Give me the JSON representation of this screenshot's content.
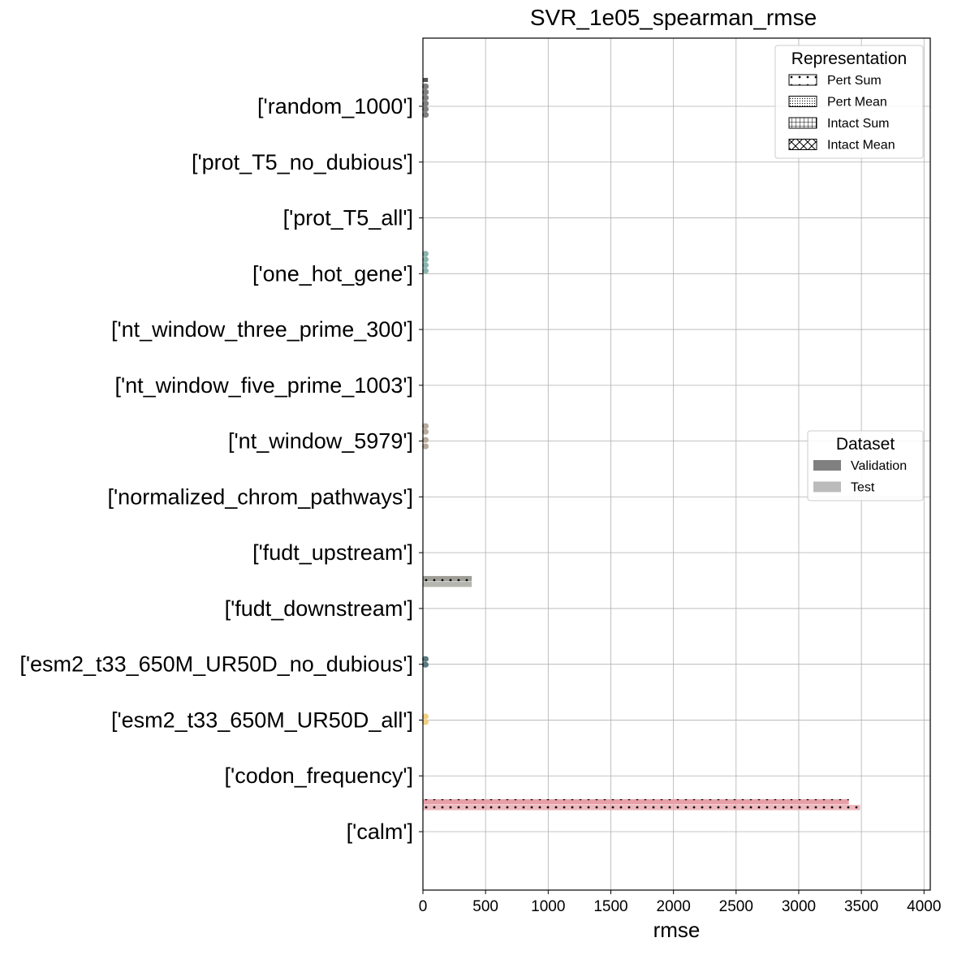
{
  "chart_data": {
    "type": "bar",
    "orientation": "horizontal",
    "title": "SVR_1e05_spearman_rmse",
    "xlabel": "rmse",
    "ylabel": "",
    "xlim": [
      0,
      4050
    ],
    "xticks": [
      0,
      500,
      1000,
      1500,
      2000,
      2500,
      3000,
      3500,
      4000
    ],
    "grid": true,
    "categories": [
      "['random_1000']",
      "['prot_T5_no_dubious']",
      "['prot_T5_all']",
      "['one_hot_gene']",
      "['nt_window_three_prime_300']",
      "['nt_window_five_prime_1003']",
      "['nt_window_5979']",
      "['normalized_chrom_pathways']",
      "['fudt_upstream']",
      "['fudt_downstream']",
      "['esm2_t33_650M_UR50D_no_dubious']",
      "['esm2_t33_650M_UR50D_all']",
      "['codon_frequency']",
      "['calm']"
    ],
    "category_colors": [
      "#808080",
      "#d0d0d0",
      "#d0d0d0",
      "#8ab5ae",
      "#d0d0d0",
      "#d0d0d0",
      "#b8ab9c",
      "#d0d0d0",
      "#d0d0d0",
      "#9e9e96",
      "#5a7a80",
      "#f0d080",
      "#d0d0d0",
      "#e8a0a8"
    ],
    "series": [
      {
        "name": "Pert Sum / Validation",
        "values": [
          40,
          0,
          0,
          0,
          0,
          0,
          0,
          0,
          0,
          390,
          0,
          0,
          0,
          3400
        ]
      },
      {
        "name": "Pert Sum / Test",
        "values": [
          40,
          0,
          0,
          0,
          0,
          0,
          0,
          0,
          0,
          390,
          0,
          0,
          0,
          3490
        ]
      },
      {
        "name": "Pert Mean / Validation",
        "values": [
          40,
          0,
          0,
          30,
          0,
          0,
          30,
          0,
          0,
          0,
          30,
          35,
          0,
          0
        ]
      },
      {
        "name": "Pert Mean / Test",
        "values": [
          40,
          0,
          0,
          30,
          0,
          0,
          30,
          0,
          0,
          0,
          30,
          35,
          0,
          0
        ]
      },
      {
        "name": "Intact Sum / Validation",
        "values": [
          40,
          0,
          0,
          30,
          0,
          0,
          30,
          0,
          0,
          0,
          30,
          35,
          0,
          0
        ]
      },
      {
        "name": "Intact Sum / Test",
        "values": [
          40,
          0,
          0,
          30,
          0,
          0,
          30,
          0,
          0,
          0,
          30,
          35,
          0,
          0
        ]
      },
      {
        "name": "Intact Mean / Validation",
        "values": [
          40,
          0,
          0,
          0,
          0,
          0,
          0,
          0,
          0,
          0,
          0,
          0,
          0,
          0
        ]
      },
      {
        "name": "Intact Mean / Test",
        "values": [
          40,
          0,
          0,
          0,
          0,
          0,
          0,
          0,
          0,
          0,
          0,
          0,
          0,
          0
        ]
      }
    ],
    "legends": [
      {
        "title": "Representation",
        "position": "top-right",
        "entries": [
          {
            "label": "Pert Sum",
            "hatch": "dots"
          },
          {
            "label": "Pert Mean",
            "hatch": "dense-dots"
          },
          {
            "label": "Intact Sum",
            "hatch": "grid"
          },
          {
            "label": "Intact Mean",
            "hatch": "cross"
          }
        ]
      },
      {
        "title": "Dataset",
        "position": "center-right",
        "entries": [
          {
            "label": "Validation",
            "color": "#808080"
          },
          {
            "label": "Test",
            "color": "#bbbbbb"
          }
        ]
      }
    ]
  }
}
